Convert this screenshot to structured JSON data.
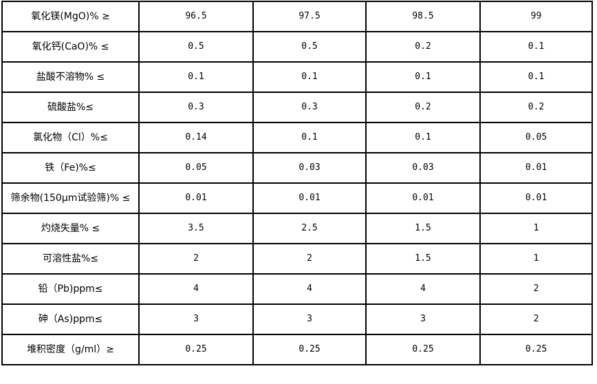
{
  "rows": [
    {
      "label": "氧化镁(MgO)%  ≥",
      "values": [
        "96.5",
        "97.5",
        "98.5",
        "99"
      ]
    },
    {
      "label": "氧化钙(CaO)%  ≤",
      "values": [
        "0.5",
        "0.5",
        "0.2",
        "0.1"
      ]
    },
    {
      "label": "盐酸不溶物%  ≤",
      "values": [
        "0.1",
        "0.1",
        "0.1",
        "0.1"
      ]
    },
    {
      "label": "硫酸盐%≤",
      "values": [
        "0.3",
        "0.3",
        "0.2",
        "0.2"
      ]
    },
    {
      "label": "氯化物（Cl）%≤",
      "values": [
        "0.14",
        "0.1",
        "0.1",
        "0.05"
      ]
    },
    {
      "label": "铁（Fe)%≤",
      "values": [
        "0.05",
        "0.03",
        "0.03",
        "0.01"
      ]
    },
    {
      "label": "筛余物(150μm试验筛)%  ≤",
      "values": [
        "0.01",
        "0.01",
        "0.01",
        "0.01"
      ]
    },
    {
      "label": "灼烧失量%  ≤",
      "values": [
        "3.5",
        "2.5",
        "1.5",
        "1"
      ]
    },
    {
      "label": "可溶性盐%≤",
      "values": [
        "2",
        "2",
        "1.5",
        "1"
      ]
    },
    {
      "label": "铅（Pb)ppm≤",
      "values": [
        "4",
        "4",
        "4",
        "2"
      ]
    },
    {
      "label": "砷（As)ppm≤",
      "values": [
        "3",
        "3",
        "3",
        "2"
      ]
    },
    {
      "label": "堆积密度（g/ml）≥",
      "values": [
        "0.25",
        "0.25",
        "0.25",
        "0.25"
      ]
    }
  ]
}
